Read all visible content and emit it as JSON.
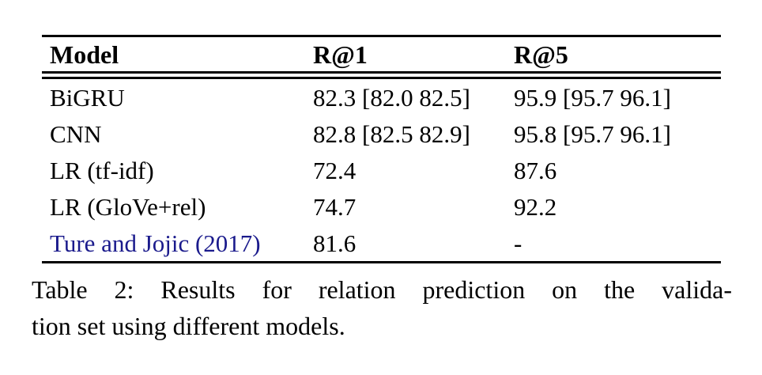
{
  "table": {
    "header": {
      "model": "Model",
      "r1": "R@1",
      "r5": "R@5"
    },
    "rows": [
      {
        "model": "BiGRU",
        "r1": "82.3 [82.0 82.5]",
        "r5": "95.9 [95.7 96.1]"
      },
      {
        "model": "CNN",
        "r1": "82.8 [82.5 82.9]",
        "r5": "95.8 [95.7 96.1]"
      },
      {
        "model": "LR (tf-idf)",
        "r1": "72.4",
        "r5": "87.6"
      },
      {
        "model": "LR (GloVe+rel)",
        "r1": "74.7",
        "r5": "92.2"
      },
      {
        "model": "Ture and Jojic (2017)",
        "r1": "81.6",
        "r5": "-"
      }
    ]
  },
  "caption": {
    "lines": [
      "Table 2: Results for relation prediction on the valida-",
      "tion set using different models."
    ],
    "full_text": "Table 2: Results for relation prediction on the validation set using different models."
  },
  "colors": {
    "text": "#000000",
    "citation_link": "#1a1a8c",
    "rule": "#000000",
    "background": "#ffffff"
  }
}
